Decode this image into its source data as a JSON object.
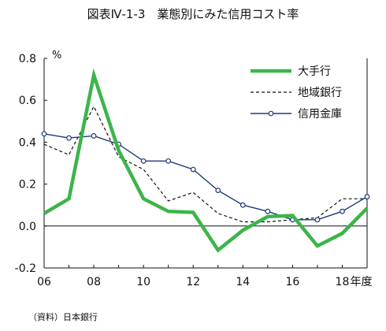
{
  "chart_data": {
    "type": "line",
    "title": "図表Ⅳ-1-3　業態別にみた信用コスト率",
    "ylabel": "%",
    "xlabel": "年度",
    "x": [
      2006,
      2007,
      2008,
      2009,
      2010,
      2011,
      2012,
      2013,
      2014,
      2015,
      2016,
      2017,
      2018,
      2019
    ],
    "xticks": [
      2006,
      2008,
      2010,
      2012,
      2014,
      2016,
      2018
    ],
    "xtick_labels": [
      "06",
      "08",
      "10",
      "12",
      "14",
      "16",
      "18"
    ],
    "yticks": [
      -0.2,
      0.0,
      0.2,
      0.4,
      0.6,
      0.8
    ],
    "ytick_labels": [
      "-0.2",
      "0.0",
      "0.2",
      "0.4",
      "0.6",
      "0.8"
    ],
    "xlim": [
      2006,
      2019
    ],
    "ylim": [
      -0.2,
      0.8
    ],
    "grid": false,
    "legend_position": "top-right",
    "series": [
      {
        "name": "大手行",
        "color": "#3CB54A",
        "style": "thick-solid",
        "values": [
          0.06,
          0.13,
          0.72,
          0.36,
          0.13,
          0.07,
          0.065,
          -0.115,
          -0.02,
          0.045,
          0.05,
          -0.095,
          -0.035,
          0.085
        ]
      },
      {
        "name": "地域銀行",
        "color": "#111111",
        "style": "dashed",
        "values": [
          0.39,
          0.34,
          0.57,
          0.33,
          0.27,
          0.12,
          0.16,
          0.06,
          0.02,
          0.02,
          0.03,
          0.04,
          0.13,
          0.13
        ]
      },
      {
        "name": "信用金庫",
        "color": "#1F3A7A",
        "style": "solid-markers",
        "values": [
          0.44,
          0.42,
          0.43,
          0.39,
          0.31,
          0.31,
          0.27,
          0.17,
          0.1,
          0.07,
          0.03,
          0.03,
          0.07,
          0.14
        ]
      }
    ]
  },
  "source_note": "（資料）日本銀行"
}
